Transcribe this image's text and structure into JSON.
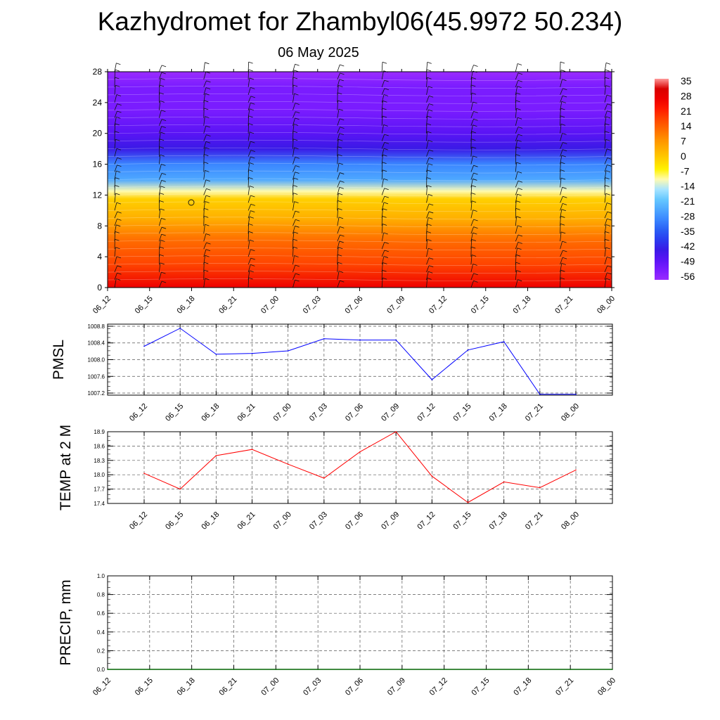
{
  "header": {
    "title": "Kazhydromet for Zhambyl06(45.9972 50.234)",
    "subtitle": "06 May 2025"
  },
  "colors": {
    "pmsl_line": "#0000ff",
    "temp_line": "#ff0000",
    "precip_line": "#006400",
    "colorbar": [
      "#9a2cff",
      "#7a1cff",
      "#5a14f5",
      "#3a1ae6",
      "#2a3cf0",
      "#2a60f5",
      "#3a86ff",
      "#4ea8ff",
      "#66c8ff",
      "#a8e4ff",
      "#fffbb0",
      "#fff200",
      "#ffd000",
      "#ffb000",
      "#ff9000",
      "#ff6a00",
      "#ff4400",
      "#ff1a00",
      "#ee0000",
      "#d80000",
      "#ff9999"
    ]
  },
  "chart_data": [
    {
      "type": "heatmap",
      "description_key": "temperature-height cross section with wind barbs",
      "y_ticks": [
        "0",
        "4",
        "8",
        "12",
        "16",
        "20",
        "24",
        "28"
      ],
      "ylim": [
        0,
        28
      ],
      "x_ticks": [
        "06_12",
        "06_15",
        "06_18",
        "06_21",
        "07_00",
        "07_03",
        "07_06",
        "07_09",
        "07_12",
        "07_15",
        "07_18",
        "07_21",
        "08_00"
      ],
      "colorbar_labels": [
        "35",
        "28",
        "21",
        "14",
        "7",
        "0",
        "-7",
        "-14",
        "-21",
        "-28",
        "-35",
        "-42",
        "-49",
        "-56"
      ],
      "colorbar_range": [
        -63,
        42
      ],
      "level_temperature": [
        {
          "level": 0,
          "value": 30
        },
        {
          "level": 3,
          "value": 22
        },
        {
          "level": 6,
          "value": 14
        },
        {
          "level": 9,
          "value": 6
        },
        {
          "level": 11.5,
          "value": -1
        },
        {
          "level": 12.5,
          "value": -10
        },
        {
          "level": 14,
          "value": -24
        },
        {
          "level": 16,
          "value": -34
        },
        {
          "level": 18,
          "value": -45
        },
        {
          "level": 20,
          "value": -52
        },
        {
          "level": 23,
          "value": -56
        },
        {
          "level": 26,
          "value": -60
        },
        {
          "level": 28,
          "value": -63
        }
      ]
    },
    {
      "type": "line",
      "ylabel": "PMSL",
      "y_ticks": [
        "1007.2",
        "1007.6",
        "1008.0",
        "1008.4",
        "1008.8"
      ],
      "ylim": [
        1007.15,
        1008.85
      ],
      "categories": [
        "06_12",
        "06_15",
        "06_18",
        "06_21",
        "07_00",
        "07_03",
        "07_06",
        "07_09",
        "07_12",
        "07_15",
        "07_18",
        "07_21",
        "08_00"
      ],
      "series": [
        {
          "values": [
            1008.32,
            1008.75,
            1008.13,
            1008.15,
            1008.21,
            1008.5,
            1008.47,
            1008.47,
            1007.52,
            1008.23,
            1008.43,
            1007.17,
            1007.17
          ]
        }
      ]
    },
    {
      "type": "line",
      "ylabel": "TEMP at 2 M",
      "y_ticks": [
        "17.4",
        "17.7",
        "18.0",
        "18.3",
        "18.6",
        "18.9"
      ],
      "ylim": [
        17.4,
        18.9
      ],
      "categories": [
        "06_12",
        "06_15",
        "06_18",
        "06_21",
        "07_00",
        "07_03",
        "07_06",
        "07_09",
        "07_12",
        "07_15",
        "07_18",
        "07_21",
        "08_00"
      ],
      "series": [
        {
          "values": [
            18.03,
            17.7,
            18.4,
            18.53,
            18.22,
            17.93,
            18.48,
            18.9,
            17.97,
            17.42,
            17.85,
            17.73,
            18.1
          ]
        }
      ]
    },
    {
      "type": "line",
      "ylabel": "PRECIP, mm",
      "y_ticks": [
        "0.0",
        "0.2",
        "0.4",
        "0.6",
        "0.8",
        "1.0"
      ],
      "ylim": [
        0,
        1
      ],
      "categories": [
        "06_12",
        "06_15",
        "06_18",
        "06_21",
        "07_00",
        "07_03",
        "07_06",
        "07_09",
        "07_12",
        "07_15",
        "07_18",
        "07_21",
        "08_00"
      ],
      "series": [
        {
          "values": [
            0,
            0,
            0,
            0,
            0,
            0,
            0,
            0,
            0,
            0,
            0,
            0,
            0
          ]
        }
      ]
    }
  ]
}
